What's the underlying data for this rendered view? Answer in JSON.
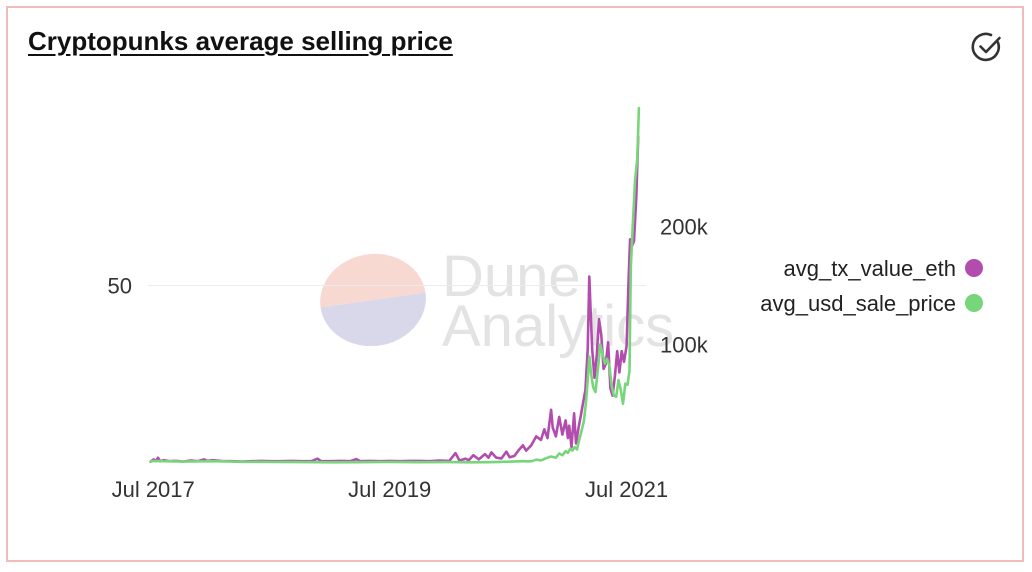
{
  "title": "Cryptopunks average selling price",
  "icons": {
    "verified": "check-circle-icon"
  },
  "watermark": {
    "line1": "Dune",
    "line2": "Analytics"
  },
  "colors": {
    "eth": "#b24dae",
    "usd": "#78d67a",
    "grid": "#ececec",
    "tick": "#333333",
    "card_border": "#f1bcbc"
  },
  "chart_data": {
    "type": "line",
    "title": "Cryptopunks average selling price",
    "xlabel": "",
    "x_ticks": [
      "Jul 2017",
      "Jul 2019",
      "Jul 2021"
    ],
    "x_tick_dates": [
      "2017-07-01",
      "2019-07-01",
      "2021-07-01"
    ],
    "x_range": [
      "2017-06-15",
      "2021-08-30"
    ],
    "left_axis": {
      "ylim": [
        0,
        100
      ],
      "ticks": [
        50
      ],
      "tick_labels": [
        "50"
      ]
    },
    "right_axis": {
      "ylim": [
        0,
        300000
      ],
      "ticks": [
        100000,
        200000
      ],
      "tick_labels": [
        "100k",
        "200k"
      ]
    },
    "grid": true,
    "legend_position": "right",
    "series": [
      {
        "name": "avg_tx_value_eth",
        "axis": "left",
        "color": "#b24dae",
        "points": [
          [
            "2017-06-23",
            0.4
          ],
          [
            "2017-07-02",
            1.0
          ],
          [
            "2017-07-10",
            0.6
          ],
          [
            "2017-07-16",
            1.5
          ],
          [
            "2017-07-22",
            0.5
          ],
          [
            "2017-08-02",
            0.8
          ],
          [
            "2017-08-20",
            0.5
          ],
          [
            "2017-09-10",
            0.6
          ],
          [
            "2017-10-01",
            0.4
          ],
          [
            "2017-10-25",
            0.7
          ],
          [
            "2017-11-15",
            0.5
          ],
          [
            "2017-12-05",
            1.0
          ],
          [
            "2017-12-15",
            0.6
          ],
          [
            "2018-01-01",
            0.8
          ],
          [
            "2018-02-01",
            0.5
          ],
          [
            "2018-03-01",
            0.5
          ],
          [
            "2018-04-01",
            0.4
          ],
          [
            "2018-05-01",
            0.5
          ],
          [
            "2018-06-01",
            0.6
          ],
          [
            "2018-07-01",
            0.5
          ],
          [
            "2018-08-01",
            0.5
          ],
          [
            "2018-09-01",
            0.6
          ],
          [
            "2018-10-01",
            0.5
          ],
          [
            "2018-11-01",
            0.5
          ],
          [
            "2018-11-20",
            1.2
          ],
          [
            "2018-12-01",
            0.5
          ],
          [
            "2019-01-01",
            0.5
          ],
          [
            "2019-02-01",
            0.6
          ],
          [
            "2019-03-01",
            0.5
          ],
          [
            "2019-03-20",
            1.1
          ],
          [
            "2019-04-01",
            0.5
          ],
          [
            "2019-05-01",
            0.6
          ],
          [
            "2019-06-01",
            0.5
          ],
          [
            "2019-07-01",
            0.6
          ],
          [
            "2019-08-01",
            0.5
          ],
          [
            "2019-09-01",
            0.6
          ],
          [
            "2019-10-01",
            0.6
          ],
          [
            "2019-11-01",
            0.5
          ],
          [
            "2019-12-01",
            0.7
          ],
          [
            "2020-01-01",
            0.6
          ],
          [
            "2020-01-20",
            2.8
          ],
          [
            "2020-02-01",
            0.7
          ],
          [
            "2020-02-20",
            1.2
          ],
          [
            "2020-03-01",
            0.8
          ],
          [
            "2020-03-15",
            2.2
          ],
          [
            "2020-04-01",
            1.0
          ],
          [
            "2020-04-20",
            2.5
          ],
          [
            "2020-05-01",
            1.5
          ],
          [
            "2020-05-10",
            3.0
          ],
          [
            "2020-05-25",
            1.5
          ],
          [
            "2020-06-10",
            1.3
          ],
          [
            "2020-06-25",
            3.2
          ],
          [
            "2020-07-05",
            1.6
          ],
          [
            "2020-07-20",
            2.0
          ],
          [
            "2020-08-01",
            3.5
          ],
          [
            "2020-08-15",
            5.0
          ],
          [
            "2020-08-25",
            3.5
          ],
          [
            "2020-09-10",
            5.0
          ],
          [
            "2020-09-25",
            7.5
          ],
          [
            "2020-10-10",
            6.5
          ],
          [
            "2020-10-20",
            9.5
          ],
          [
            "2020-10-30",
            7.0
          ],
          [
            "2020-11-10",
            15.0
          ],
          [
            "2020-11-15",
            10.0
          ],
          [
            "2020-11-25",
            7.5
          ],
          [
            "2020-12-05",
            13.0
          ],
          [
            "2020-12-15",
            8.0
          ],
          [
            "2020-12-25",
            12.0
          ],
          [
            "2021-01-01",
            7.0
          ],
          [
            "2021-01-05",
            10.5
          ],
          [
            "2021-01-12",
            4.5
          ],
          [
            "2021-01-20",
            14.0
          ],
          [
            "2021-01-26",
            5.5
          ],
          [
            "2021-02-03",
            10.0
          ],
          [
            "2021-02-10",
            13.5
          ],
          [
            "2021-02-17",
            17.0
          ],
          [
            "2021-02-24",
            20.5
          ],
          [
            "2021-03-03",
            32.0
          ],
          [
            "2021-03-08",
            52.5
          ],
          [
            "2021-03-12",
            43.0
          ],
          [
            "2021-03-17",
            32.0
          ],
          [
            "2021-03-24",
            24.0
          ],
          [
            "2021-03-31",
            30.5
          ],
          [
            "2021-04-07",
            40.5
          ],
          [
            "2021-04-14",
            36.0
          ],
          [
            "2021-04-21",
            26.5
          ],
          [
            "2021-04-28",
            28.0
          ],
          [
            "2021-05-05",
            34.0
          ],
          [
            "2021-05-12",
            21.0
          ],
          [
            "2021-05-19",
            19.0
          ],
          [
            "2021-05-26",
            24.5
          ],
          [
            "2021-06-02",
            31.5
          ],
          [
            "2021-06-09",
            25.5
          ],
          [
            "2021-06-16",
            31.5
          ],
          [
            "2021-06-23",
            28.5
          ],
          [
            "2021-07-01",
            33.0
          ],
          [
            "2021-07-07",
            51.0
          ],
          [
            "2021-07-12",
            63.0
          ],
          [
            "2021-07-17",
            61.0
          ],
          [
            "2021-07-24",
            62.5
          ],
          [
            "2021-07-31",
            75.0
          ],
          [
            "2021-08-06",
            92.0
          ]
        ]
      },
      {
        "name": "avg_usd_sale_price",
        "axis": "right",
        "color": "#78d67a",
        "points": [
          [
            "2017-06-23",
            1500
          ],
          [
            "2017-07-10",
            1800
          ],
          [
            "2017-08-01",
            1500
          ],
          [
            "2017-10-01",
            1200
          ],
          [
            "2018-01-01",
            1500
          ],
          [
            "2018-04-01",
            1000
          ],
          [
            "2018-07-01",
            900
          ],
          [
            "2018-10-01",
            800
          ],
          [
            "2019-01-01",
            600
          ],
          [
            "2019-04-01",
            700
          ],
          [
            "2019-07-01",
            900
          ],
          [
            "2019-10-01",
            700
          ],
          [
            "2020-01-01",
            800
          ],
          [
            "2020-03-01",
            600
          ],
          [
            "2020-05-01",
            700
          ],
          [
            "2020-07-01",
            1100
          ],
          [
            "2020-08-15",
            1500
          ],
          [
            "2020-09-10",
            1400
          ],
          [
            "2020-09-25",
            2800
          ],
          [
            "2020-10-10",
            2200
          ],
          [
            "2020-10-25",
            4000
          ],
          [
            "2020-11-10",
            5500
          ],
          [
            "2020-11-25",
            4500
          ],
          [
            "2020-12-05",
            8000
          ],
          [
            "2020-12-15",
            6500
          ],
          [
            "2020-12-25",
            10000
          ],
          [
            "2021-01-01",
            8500
          ],
          [
            "2021-01-08",
            12000
          ],
          [
            "2021-01-15",
            10500
          ],
          [
            "2021-01-22",
            13500
          ],
          [
            "2021-01-29",
            11500
          ],
          [
            "2021-02-05",
            20000
          ],
          [
            "2021-02-12",
            27000
          ],
          [
            "2021-02-19",
            35000
          ],
          [
            "2021-02-26",
            52000
          ],
          [
            "2021-03-03",
            70000
          ],
          [
            "2021-03-08",
            90000
          ],
          [
            "2021-03-14",
            75000
          ],
          [
            "2021-03-20",
            64000
          ],
          [
            "2021-03-27",
            60000
          ],
          [
            "2021-04-04",
            80000
          ],
          [
            "2021-04-11",
            100000
          ],
          [
            "2021-04-18",
            92000
          ],
          [
            "2021-04-25",
            84000
          ],
          [
            "2021-05-02",
            88000
          ],
          [
            "2021-05-09",
            82000
          ],
          [
            "2021-05-16",
            65000
          ],
          [
            "2021-05-23",
            57000
          ],
          [
            "2021-05-30",
            56000
          ],
          [
            "2021-06-06",
            70000
          ],
          [
            "2021-06-13",
            62000
          ],
          [
            "2021-06-20",
            50000
          ],
          [
            "2021-06-27",
            67000
          ],
          [
            "2021-07-04",
            66000
          ],
          [
            "2021-07-10",
            78000
          ],
          [
            "2021-07-14",
            165000
          ],
          [
            "2021-07-20",
            200000
          ],
          [
            "2021-07-27",
            238000
          ],
          [
            "2021-08-03",
            258000
          ],
          [
            "2021-08-08",
            300000
          ]
        ]
      }
    ]
  }
}
